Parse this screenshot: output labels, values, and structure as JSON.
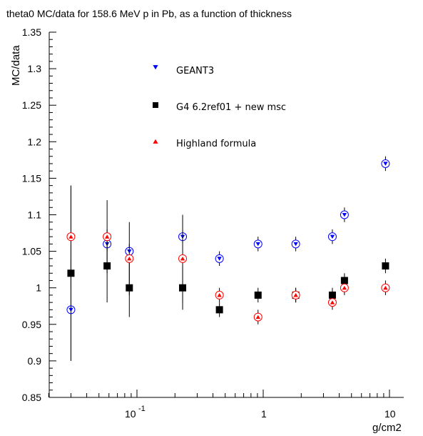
{
  "chart_data": {
    "type": "scatter",
    "title": "theta0 MC/data for 158.6 MeV p in Pb, as a function of thickness",
    "xlabel": "g/cm2",
    "ylabel": "MC/data",
    "xscale": "log",
    "xlim": [
      0.02,
      13
    ],
    "ylim": [
      0.85,
      1.35
    ],
    "x_tick_labels": [
      "10",
      "-1",
      "1",
      "10"
    ],
    "y_tick_labels": [
      "0.85",
      "0.9",
      "0.95",
      "1",
      "1.05",
      "1.1",
      "1.15",
      "1.2",
      "1.25",
      "1.3",
      "1.35"
    ],
    "legend_position": "top-left",
    "series": [
      {
        "name": "GEANT3",
        "color": "#0000ff",
        "marker": "open-circle-down-triangle",
        "points": [
          {
            "x": 0.03,
            "y": 0.97,
            "err": 0.07
          },
          {
            "x": 0.058,
            "y": 1.06,
            "err": 0.01
          },
          {
            "x": 0.087,
            "y": 1.05,
            "err": 0.01
          },
          {
            "x": 0.23,
            "y": 1.07,
            "err": 0.01
          },
          {
            "x": 0.45,
            "y": 1.04,
            "err": 0.01
          },
          {
            "x": 0.91,
            "y": 1.06,
            "err": 0.01
          },
          {
            "x": 1.81,
            "y": 1.06,
            "err": 0.01
          },
          {
            "x": 3.53,
            "y": 1.07,
            "err": 0.01
          },
          {
            "x": 4.4,
            "y": 1.1,
            "err": 0.01
          },
          {
            "x": 9.3,
            "y": 1.17,
            "err": 0.01
          }
        ]
      },
      {
        "name": "G4 6.2ref01 + new msc",
        "color": "#000000",
        "marker": "filled-square",
        "points": [
          {
            "x": 0.03,
            "y": 1.02,
            "err": 0.12
          },
          {
            "x": 0.058,
            "y": 1.03,
            "err": 0.05
          },
          {
            "x": 0.087,
            "y": 1.0,
            "err": 0.04
          },
          {
            "x": 0.23,
            "y": 1.0,
            "err": 0.03
          },
          {
            "x": 0.45,
            "y": 0.97,
            "err": 0.01
          },
          {
            "x": 0.91,
            "y": 0.99,
            "err": 0.01
          },
          {
            "x": 1.81,
            "y": 0.99,
            "err": 0.01
          },
          {
            "x": 3.53,
            "y": 0.99,
            "err": 0.01
          },
          {
            "x": 4.4,
            "y": 1.01,
            "err": 0.01
          },
          {
            "x": 9.3,
            "y": 1.03,
            "err": 0.01
          }
        ]
      },
      {
        "name": "Highland formula",
        "color": "#ff0000",
        "marker": "open-circle-up-triangle",
        "points": [
          {
            "x": 0.03,
            "y": 1.07,
            "err": 0.07
          },
          {
            "x": 0.058,
            "y": 1.07,
            "err": 0.05
          },
          {
            "x": 0.087,
            "y": 1.04,
            "err": 0.05
          },
          {
            "x": 0.23,
            "y": 1.04,
            "err": 0.06
          },
          {
            "x": 0.45,
            "y": 0.99,
            "err": 0.01
          },
          {
            "x": 0.91,
            "y": 0.96,
            "err": 0.01
          },
          {
            "x": 1.81,
            "y": 0.99,
            "err": 0.01
          },
          {
            "x": 3.53,
            "y": 0.98,
            "err": 0.01
          },
          {
            "x": 4.4,
            "y": 1.0,
            "err": 0.01
          },
          {
            "x": 9.3,
            "y": 1.0,
            "err": 0.01
          }
        ]
      }
    ]
  }
}
